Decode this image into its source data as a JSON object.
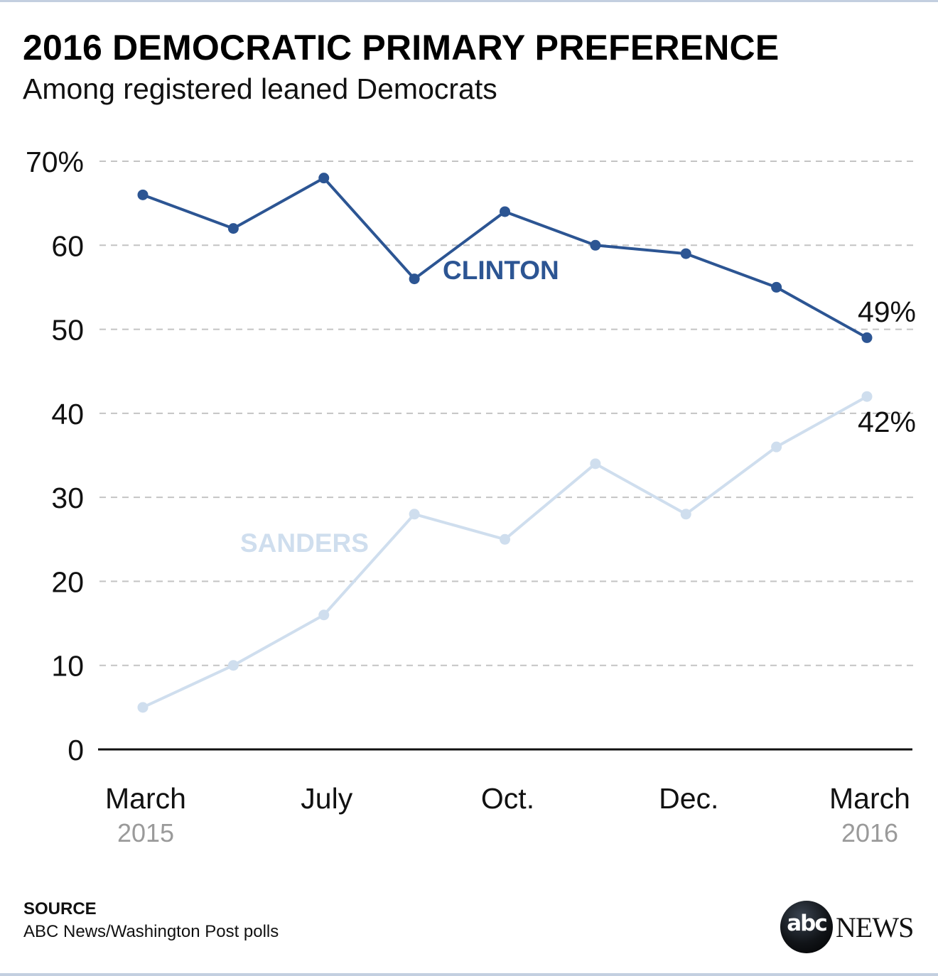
{
  "header": {
    "title": "2016 DEMOCRATIC PRIMARY PREFERENCE",
    "subtitle": "Among registered leaned Democrats"
  },
  "footer": {
    "source_heading": "SOURCE",
    "source_text": "ABC News/Washington Post polls",
    "logo_abc": "abc",
    "logo_news": "NEWS"
  },
  "colors": {
    "clinton": "#2c5593",
    "sanders": "#cfdeee",
    "grid": "#c4c4c4",
    "axis": "#111111",
    "year_label": "#9a9a9a",
    "border": "#c3cfe0"
  },
  "chart_data": {
    "type": "line",
    "title": "2016 DEMOCRATIC PRIMARY PREFERENCE",
    "subtitle": "Among registered leaned Democrats",
    "xlabel": "",
    "ylabel": "",
    "ylim": [
      0,
      70
    ],
    "grid": true,
    "yticks": [
      0,
      10,
      20,
      30,
      40,
      50,
      60,
      70
    ],
    "ytick_labels": [
      "0",
      "10",
      "20",
      "30",
      "40",
      "50",
      "60",
      "70%"
    ],
    "x": [
      1,
      2,
      3,
      4,
      5,
      6,
      7,
      8,
      9
    ],
    "xtick_positions": [
      1,
      3,
      5,
      7,
      9
    ],
    "xtick_labels": [
      "March",
      "July",
      "Oct.",
      "Dec.",
      "March"
    ],
    "xtick_sublabels": [
      "2015",
      "",
      "",
      "",
      "2016"
    ],
    "series": [
      {
        "name": "CLINTON",
        "values": [
          66,
          62,
          68,
          56,
          64,
          60,
          59,
          55,
          49
        ],
        "end_label": "49%"
      },
      {
        "name": "SANDERS",
        "values": [
          5,
          10,
          16,
          28,
          25,
          34,
          28,
          36,
          42
        ],
        "end_label": "42%"
      }
    ],
    "legend": "inline labels"
  }
}
